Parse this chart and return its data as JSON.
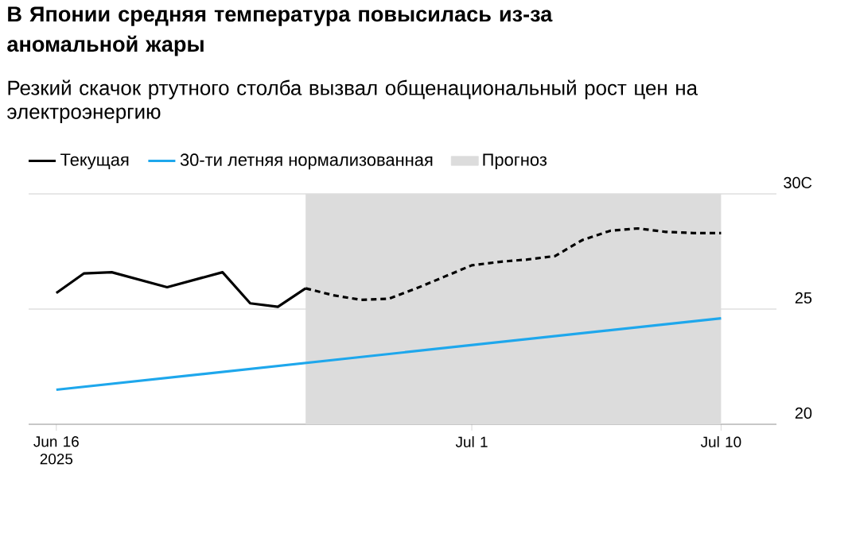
{
  "chart_data": {
    "type": "line",
    "title": "В Японии средняя температура повысилась из-за аномальной жары",
    "subtitle": "Резкий скачок ртутного столба вызвал общенациональный рост цен на электроэнергию",
    "series": [
      {
        "name": "Текущая",
        "color": "#000000",
        "line_style": "solid",
        "x": [
          "2025-06-16",
          "2025-06-17",
          "2025-06-18",
          "2025-06-20",
          "2025-06-22",
          "2025-06-23",
          "2025-06-24",
          "2025-06-25"
        ],
        "values": [
          25.7,
          26.55,
          26.6,
          25.95,
          26.6,
          25.25,
          25.1,
          25.9
        ]
      },
      {
        "color": "#000000",
        "line_style": "dashed",
        "x": [
          "2025-06-25",
          "2025-06-26",
          "2025-06-27",
          "2025-06-28",
          "2025-06-29",
          "2025-06-30",
          "2025-07-01",
          "2025-07-02",
          "2025-07-03",
          "2025-07-04",
          "2025-07-05",
          "2025-07-06",
          "2025-07-07",
          "2025-07-08",
          "2025-07-09",
          "2025-07-10"
        ],
        "values": [
          25.9,
          25.6,
          25.4,
          25.45,
          25.9,
          26.4,
          26.9,
          27.05,
          27.15,
          27.3,
          28.0,
          28.4,
          28.5,
          28.35,
          28.3,
          28.3
        ]
      },
      {
        "name": "30-ти летняя нормализованная",
        "color": "#1ea7ec",
        "line_style": "solid",
        "x": [
          "2025-06-16",
          "2025-07-10"
        ],
        "values": [
          21.5,
          24.6
        ]
      }
    ],
    "bands": [
      {
        "axis": "x",
        "from": "2025-06-25",
        "to": "2025-07-10",
        "label": "Прогноз",
        "color": "#dcdcdc"
      }
    ],
    "xlim": [
      "2025-06-15",
      "2025-07-12"
    ],
    "xticks": [
      {
        "value": "2025-06-16",
        "label": "Jun 16 2025"
      },
      {
        "value": "2025-07-01",
        "label": "Jul 1"
      },
      {
        "value": "2025-07-10",
        "label": "Jul 10"
      }
    ],
    "ylim": [
      20,
      30
    ],
    "yticks": [
      20,
      25,
      {
        "value": 30,
        "label": "30C"
      }
    ],
    "grid": "y",
    "legend": "top left",
    "marker": "none"
  }
}
